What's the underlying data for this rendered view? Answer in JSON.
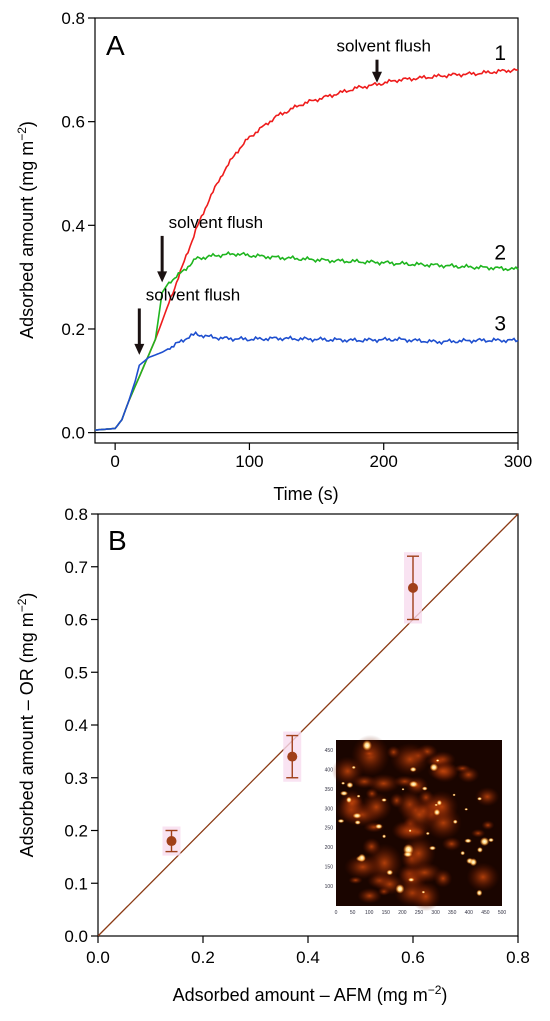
{
  "chart_data": [
    {
      "type": "line",
      "panel_label": "A",
      "xlabel": "Time (s)",
      "ylabel": "Adsorbed amount (mg m",
      "ylabel_exp": "−2",
      "ylabel_close": ")",
      "xlim": [
        -15,
        300
      ],
      "ylim": [
        -0.02,
        0.8
      ],
      "xticks": [
        0,
        100,
        200,
        300
      ],
      "yticks": [
        0.0,
        0.2,
        0.4,
        0.6,
        0.8
      ],
      "xtick_labels": [
        "0",
        "100",
        "200",
        "300"
      ],
      "ytick_labels": [
        "0.0",
        "0.2",
        "0.4",
        "0.6",
        "0.8"
      ],
      "series": [
        {
          "name": "1",
          "color": "#ee1c1c",
          "x": [
            -15,
            0,
            5,
            10,
            20,
            30,
            40,
            50,
            60,
            70,
            80,
            90,
            100,
            120,
            140,
            160,
            180,
            195,
            210,
            230,
            250,
            270,
            290,
            300
          ],
          "y": [
            0.005,
            0.008,
            0.025,
            0.06,
            0.12,
            0.18,
            0.25,
            0.32,
            0.39,
            0.45,
            0.5,
            0.54,
            0.57,
            0.61,
            0.635,
            0.65,
            0.665,
            0.672,
            0.68,
            0.685,
            0.69,
            0.693,
            0.698,
            0.7
          ]
        },
        {
          "name": "2",
          "color": "#1fb51f",
          "x": [
            -15,
            0,
            5,
            10,
            20,
            30,
            35,
            40,
            50,
            60,
            70,
            80,
            90,
            100,
            120,
            140,
            160,
            180,
            200,
            220,
            240,
            260,
            280,
            300
          ],
          "y": [
            0.005,
            0.008,
            0.025,
            0.06,
            0.12,
            0.18,
            0.27,
            0.29,
            0.31,
            0.335,
            0.34,
            0.343,
            0.345,
            0.342,
            0.338,
            0.335,
            0.332,
            0.33,
            0.328,
            0.325,
            0.323,
            0.32,
            0.318,
            0.315
          ]
        },
        {
          "name": "3",
          "color": "#1e4fcf",
          "x": [
            -15,
            0,
            5,
            10,
            15,
            18,
            25,
            35,
            45,
            55,
            60,
            70,
            80,
            100,
            120,
            150,
            180,
            210,
            240,
            270,
            300
          ],
          "y": [
            0.005,
            0.008,
            0.025,
            0.06,
            0.1,
            0.13,
            0.145,
            0.155,
            0.17,
            0.185,
            0.19,
            0.185,
            0.182,
            0.18,
            0.182,
            0.18,
            0.178,
            0.18,
            0.175,
            0.178,
            0.178
          ]
        }
      ],
      "annotations": [
        {
          "text": "solvent flush",
          "arrow_x": 195,
          "arrow_y": 0.675,
          "text_x": 200,
          "text_y": 0.735
        },
        {
          "text": "solvent flush",
          "arrow_x": 35,
          "arrow_y": 0.29,
          "text_x": 75,
          "text_y": 0.395
        },
        {
          "text": "solvent flush",
          "arrow_x": 18,
          "arrow_y": 0.15,
          "text_x": 58,
          "text_y": 0.255
        }
      ]
    },
    {
      "type": "scatter",
      "panel_label": "B",
      "xlabel": "Adsorbed amount – AFM (mg m",
      "xlabel_exp": "−2",
      "xlabel_close": ")",
      "ylabel": "Adsorbed amount – OR (mg m",
      "ylabel_exp": "−2",
      "ylabel_close": ")",
      "xlim": [
        0,
        0.8
      ],
      "ylim": [
        0,
        0.8
      ],
      "xticks": [
        0.0,
        0.2,
        0.4,
        0.6,
        0.8
      ],
      "yticks": [
        0.0,
        0.1,
        0.2,
        0.3,
        0.4,
        0.5,
        0.6,
        0.7,
        0.8
      ],
      "xtick_labels": [
        "0.0",
        "0.2",
        "0.4",
        "0.6",
        "0.8"
      ],
      "ytick_labels": [
        "0.0",
        "0.1",
        "0.2",
        "0.3",
        "0.4",
        "0.5",
        "0.6",
        "0.7",
        "0.8"
      ],
      "color": "#a0401a",
      "points": [
        {
          "x": 0.14,
          "y": 0.18,
          "err": 0.02
        },
        {
          "x": 0.37,
          "y": 0.34,
          "err": 0.04
        },
        {
          "x": 0.6,
          "y": 0.66,
          "err": 0.06
        }
      ],
      "reference_line": {
        "x": [
          0,
          0.8
        ],
        "y": [
          0,
          0.8
        ]
      },
      "inset": {
        "xtick_labels": [
          "0",
          "50",
          "100",
          "150",
          "200",
          "250",
          "300",
          "350",
          "400",
          "450",
          "500"
        ],
        "ytick_labels": [
          "100",
          "150",
          "200",
          "250",
          "300",
          "350",
          "400",
          "450"
        ]
      }
    }
  ]
}
